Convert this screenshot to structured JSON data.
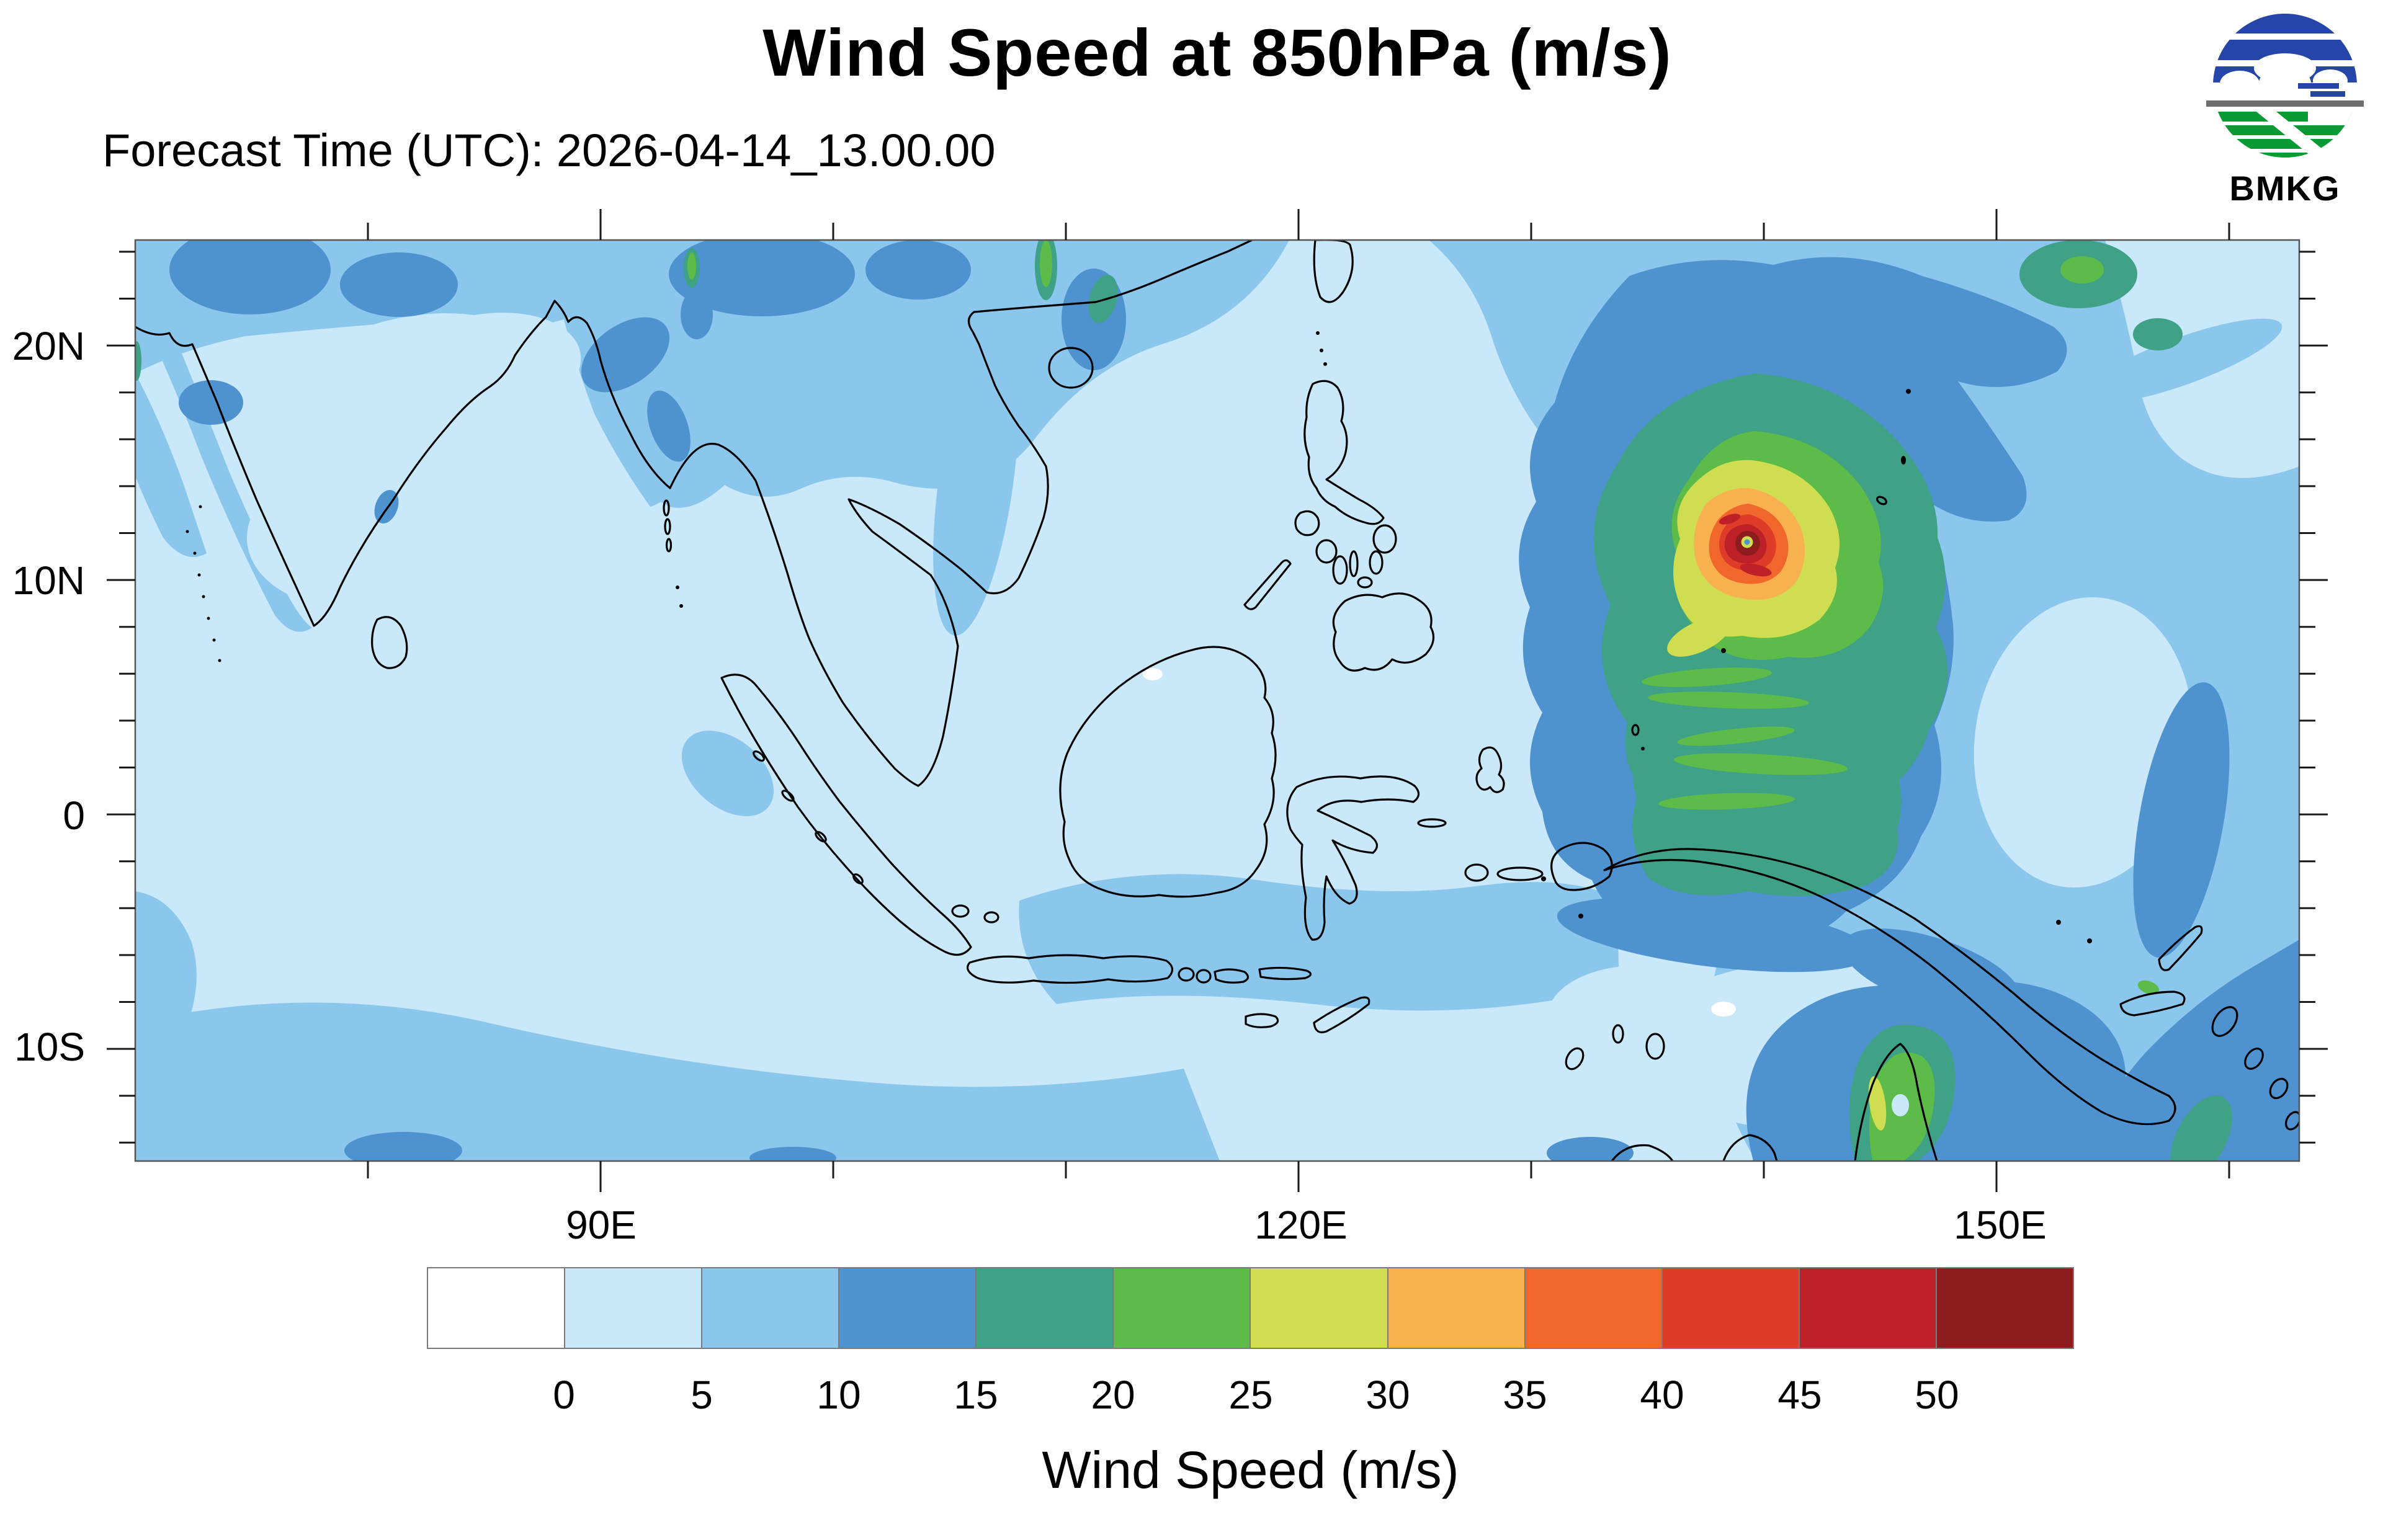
{
  "header": {
    "title": "Wind Speed at 850hPa (m/s)",
    "forecast_time_label": "Forecast Time (UTC): 2026-04-14_13.00.00"
  },
  "logo": {
    "text": "BMKG"
  },
  "axes": {
    "lat_labels": [
      "20N",
      "10N",
      "0",
      "10S"
    ],
    "lon_labels": [
      "90E",
      "120E",
      "150E"
    ]
  },
  "colorbar": {
    "caption": "Wind Speed (m/s)",
    "tick_labels": [
      "0",
      "5",
      "10",
      "15",
      "20",
      "25",
      "30",
      "35",
      "40",
      "45",
      "50"
    ],
    "colors": [
      "#ffffff",
      "#c9e8f9",
      "#8bc7ec",
      "#4e92cf",
      "#3fa185",
      "#5cbb49",
      "#cfdd51",
      "#f7b14e",
      "#f1662b",
      "#de3b28",
      "#bd2026",
      "#8d1c1d"
    ]
  },
  "chart_data": {
    "type": "heatmap",
    "title": "Wind Speed at 850hPa (m/s)",
    "subtitle": "Forecast Time (UTC): 2026-04-14_13.00.00",
    "colorbar_title": "Wind Speed (m/s)",
    "units": "m/s",
    "x_tick_labels": [
      "90E",
      "120E",
      "150E"
    ],
    "y_tick_labels": [
      "20N",
      "10N",
      "0",
      "10S"
    ],
    "contour_levels": [
      0,
      5,
      10,
      15,
      20,
      25,
      30,
      35,
      40,
      45,
      50
    ],
    "level_colors": [
      "#ffffff",
      "#c9e8f9",
      "#8bc7ec",
      "#4e92cf",
      "#3fa185",
      "#5cbb49",
      "#cfdd51",
      "#f7b14e",
      "#f1662b",
      "#de3b28",
      "#bd2026",
      "#8d1c1d"
    ],
    "approx_extent": {
      "lon_min_e": 70,
      "lon_max_e": 163,
      "lat_min_n": -15,
      "lat_max_n": 25
    },
    "legend_position": "bottom",
    "grid": false,
    "features": [
      {
        "label": "intense tropical cyclone",
        "approx_lon_e": 139.5,
        "approx_lat_n": 12,
        "peak_wind_band_mps": "50+"
      },
      {
        "label": "weaker cyclonic system (Coral Sea)",
        "approx_lon_e": 145.5,
        "approx_lat_n": -12.5,
        "peak_wind_band_mps": "25-30"
      },
      {
        "label": "background flow",
        "note": "most of domain in 0-10 m/s bands; 10-15 m/s patches near typhoon, N India, S China, Coral Sea"
      }
    ]
  }
}
